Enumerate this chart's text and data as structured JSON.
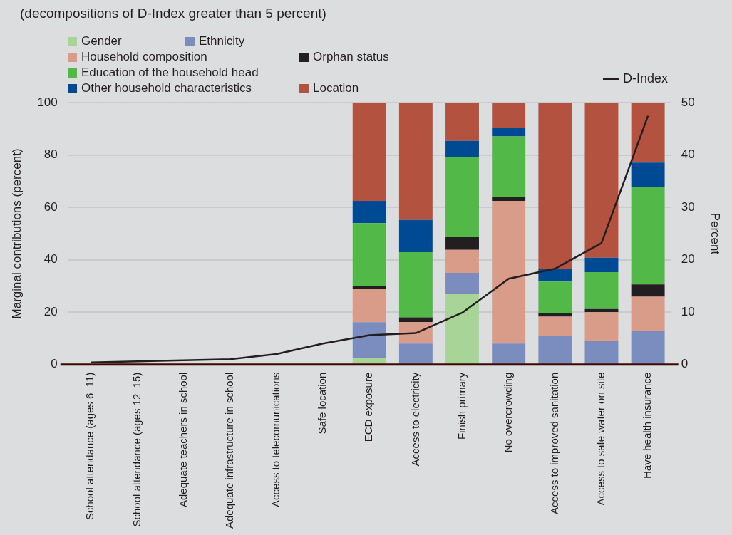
{
  "chart_data": {
    "type": "bar",
    "title": "(decompositions of D-Index greater than 5 percent)",
    "ylabel": "Marginal contributions (percent)",
    "y2label": "Percent",
    "categories": [
      "School attendance (ages 6–11)",
      "School attendance (ages 12–15)",
      "Adequate teachers in school",
      "Adequate infrastructure in school",
      "Access to telecomunications",
      "Safe location",
      "ECD exposure",
      "Access to electricity",
      "Finish primary",
      "No overcrowding",
      "Access to improved sanitation",
      "Access to safe water on site",
      "Have health insurance"
    ],
    "stacked": true,
    "series": [
      {
        "name": "Gender",
        "color": "#a8d597",
        "values": [
          null,
          null,
          null,
          null,
          null,
          null,
          2.4,
          0,
          27.1,
          0,
          0,
          0,
          0
        ]
      },
      {
        "name": "Ethnicity",
        "color": "#7b8cbe",
        "values": [
          null,
          null,
          null,
          null,
          null,
          null,
          13.8,
          8.0,
          7.9,
          8.0,
          10.9,
          9.2,
          12.7
        ]
      },
      {
        "name": "Household composition",
        "color": "#d99c89",
        "values": [
          null,
          null,
          null,
          null,
          null,
          null,
          12.6,
          8.2,
          8.8,
          54.5,
          7.4,
          10.8,
          13.2
        ]
      },
      {
        "name": "Orphan status",
        "color": "#231f20",
        "values": [
          null,
          null,
          null,
          null,
          null,
          null,
          1.2,
          1.8,
          4.9,
          1.5,
          1.4,
          1.2,
          4.7
        ]
      },
      {
        "name": "Education of the household head",
        "color": "#52b848",
        "values": [
          null,
          null,
          null,
          null,
          null,
          null,
          24.0,
          24.9,
          30.5,
          23.1,
          12.0,
          14.1,
          37.2
        ]
      },
      {
        "name": "Other household characteristics",
        "color": "#004a93",
        "values": [
          null,
          null,
          null,
          null,
          null,
          null,
          8.5,
          12.3,
          6.2,
          3.2,
          4.7,
          5.5,
          9.3
        ]
      },
      {
        "name": "Location",
        "color": "#b3523f",
        "values": [
          null,
          null,
          null,
          null,
          null,
          null,
          37.5,
          44.8,
          14.6,
          9.7,
          63.6,
          59.2,
          22.9
        ]
      },
      {
        "name": "D-Index",
        "type": "line",
        "axis": "y2",
        "color": "#231f20",
        "values": [
          0.4,
          0.6,
          0.8,
          1.0,
          2.0,
          4.0,
          5.6,
          6.0,
          9.9,
          16.4,
          18.3,
          23.2,
          47.5
        ]
      }
    ],
    "ylim": [
      0,
      100
    ],
    "yticks": [
      0,
      20,
      40,
      60,
      80,
      100
    ],
    "y2lim": [
      0,
      50
    ],
    "y2ticks": [
      0,
      10,
      20,
      30,
      40,
      50
    ],
    "grid": "y",
    "legend": "top",
    "marker": "none"
  }
}
